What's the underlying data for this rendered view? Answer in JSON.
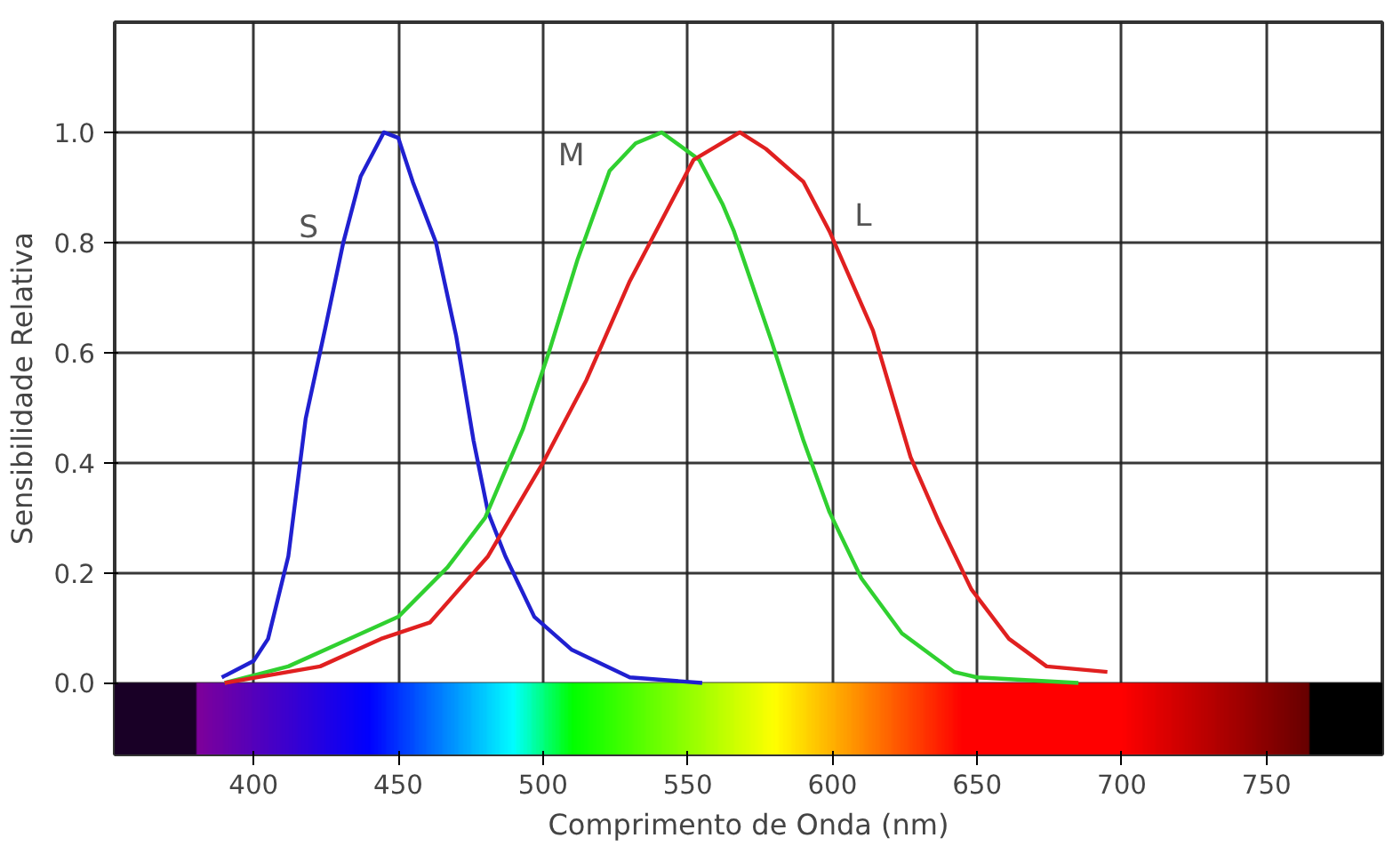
{
  "chart_data": {
    "type": "line",
    "xlabel": "Comprimento de Onda (nm)",
    "ylabel": "Sensibilidade Relativa",
    "xlim": [
      352,
      790
    ],
    "ylim": [
      -0.13,
      1.2
    ],
    "xticks": [
      400,
      450,
      500,
      550,
      600,
      650,
      700,
      750
    ],
    "yticks": [
      {
        "value": 0,
        "label": "0.0"
      },
      {
        "value": 0.2,
        "label": "0.2"
      },
      {
        "value": 0.4,
        "label": "0.4"
      },
      {
        "value": 0.6,
        "label": "0.6"
      },
      {
        "value": 0.8,
        "label": "0.8"
      },
      {
        "value": 1,
        "label": "1.0"
      }
    ],
    "grid": true,
    "marker": "none",
    "line_style": "solid",
    "bands": [
      {
        "axis": "y",
        "from": -0.13,
        "to": 0
      }
    ],
    "series": [
      {
        "color": "#2020d0",
        "x": [
          389,
          400,
          405,
          412,
          418,
          425,
          431,
          437,
          445,
          450,
          455,
          463,
          470,
          476,
          481,
          487,
          497,
          510,
          530,
          555
        ],
        "values": [
          0.01,
          0.04,
          0.08,
          0.23,
          0.48,
          0.65,
          0.8,
          0.92,
          1.0,
          0.99,
          0.91,
          0.8,
          0.63,
          0.44,
          0.31,
          0.23,
          0.12,
          0.06,
          0.01,
          0.0
        ]
      },
      {
        "color": "#30d030",
        "x": [
          390,
          412,
          433,
          450,
          467,
          480,
          493,
          502,
          512,
          523,
          532,
          541,
          554,
          562,
          566,
          579,
          590,
          599,
          610,
          624,
          642,
          650,
          685
        ],
        "values": [
          0.0,
          0.03,
          0.08,
          0.12,
          0.21,
          0.3,
          0.46,
          0.6,
          0.77,
          0.93,
          0.98,
          1.0,
          0.95,
          0.87,
          0.82,
          0.62,
          0.44,
          0.31,
          0.19,
          0.09,
          0.02,
          0.01,
          0.0
        ]
      },
      {
        "color": "#e02020",
        "x": [
          390,
          423,
          444,
          461,
          481,
          500,
          515,
          530,
          552,
          568,
          577,
          590,
          599,
          614,
          627,
          637,
          648,
          661,
          674,
          695
        ],
        "values": [
          0.0,
          0.03,
          0.08,
          0.11,
          0.23,
          0.4,
          0.55,
          0.73,
          0.95,
          1.0,
          0.97,
          0.91,
          0.82,
          0.64,
          0.41,
          0.29,
          0.17,
          0.08,
          0.03,
          0.02
        ]
      }
    ],
    "annotations": [
      {
        "text": "S",
        "x": 431,
        "y": 0.8
      },
      {
        "text": "M",
        "x": 523,
        "y": 0.93
      },
      {
        "text": "L",
        "x": 599,
        "y": 0.82
      }
    ]
  }
}
